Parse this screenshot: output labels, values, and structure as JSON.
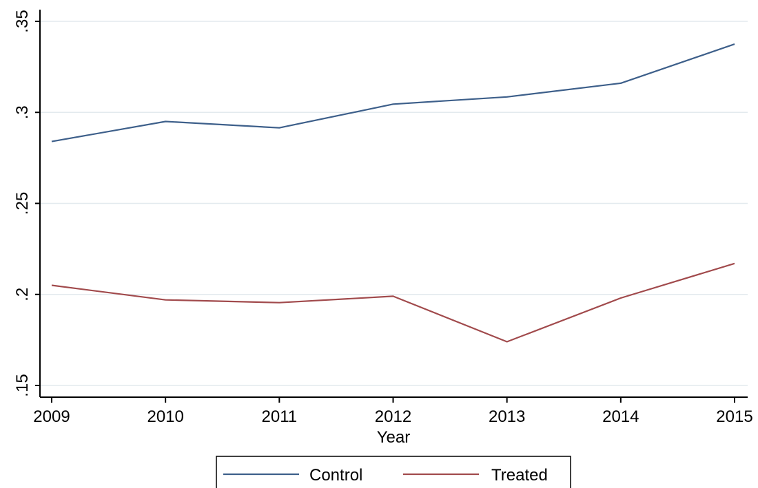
{
  "chart_data": {
    "type": "line",
    "x": [
      2009,
      2010,
      2011,
      2012,
      2013,
      2014,
      2015
    ],
    "xticks": [
      "2009",
      "2010",
      "2011",
      "2012",
      "2013",
      "2014",
      "2015"
    ],
    "yticks": [
      {
        "value": 0.15,
        "label": ".15"
      },
      {
        "value": 0.2,
        "label": ".2"
      },
      {
        "value": 0.25,
        "label": ".25"
      },
      {
        "value": 0.3,
        "label": ".3"
      },
      {
        "value": 0.35,
        "label": ".35"
      }
    ],
    "xlabel": "Year",
    "ylabel": "",
    "xlim": [
      2009,
      2015
    ],
    "ylim": [
      0.15,
      0.35
    ],
    "grid": true,
    "legend_position": "bottom",
    "series": [
      {
        "name": "Control",
        "color": "#3d5f8a",
        "values": [
          0.284,
          0.295,
          0.2915,
          0.3045,
          0.3085,
          0.316,
          0.3375
        ]
      },
      {
        "name": "Treated",
        "color": "#a14a4c",
        "values": [
          0.205,
          0.197,
          0.1955,
          0.199,
          0.174,
          0.198,
          0.217
        ]
      }
    ]
  }
}
